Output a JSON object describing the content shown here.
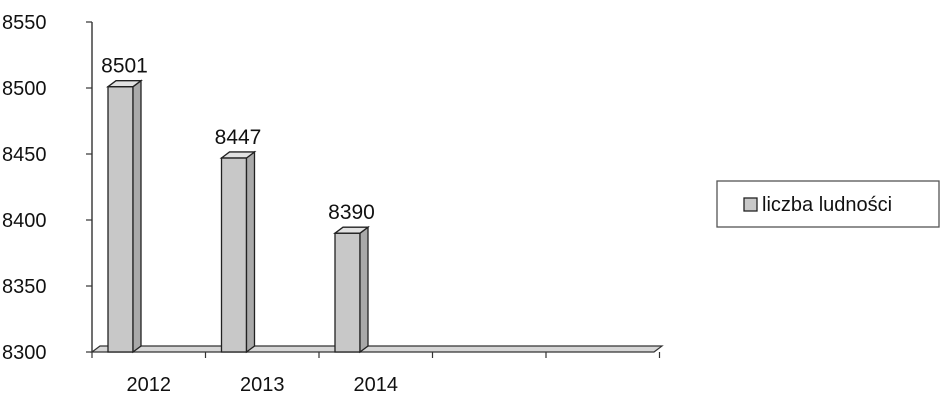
{
  "chart_data": {
    "type": "bar",
    "categories": [
      "2012",
      "2013",
      "2014",
      "",
      ""
    ],
    "series": [
      {
        "name": "liczba ludności",
        "values": [
          8501,
          8447,
          8390,
          null,
          null
        ],
        "color": "#c8c8c8"
      }
    ],
    "data_labels": [
      "8501",
      "8447",
      "8390"
    ],
    "y_ticks": [
      8300,
      8350,
      8400,
      8450,
      8500,
      8550
    ],
    "ylim": [
      8300,
      8550
    ],
    "title": "",
    "xlabel": "",
    "ylabel": "",
    "grid": false,
    "legend_position": "right",
    "style": "3d-column"
  }
}
